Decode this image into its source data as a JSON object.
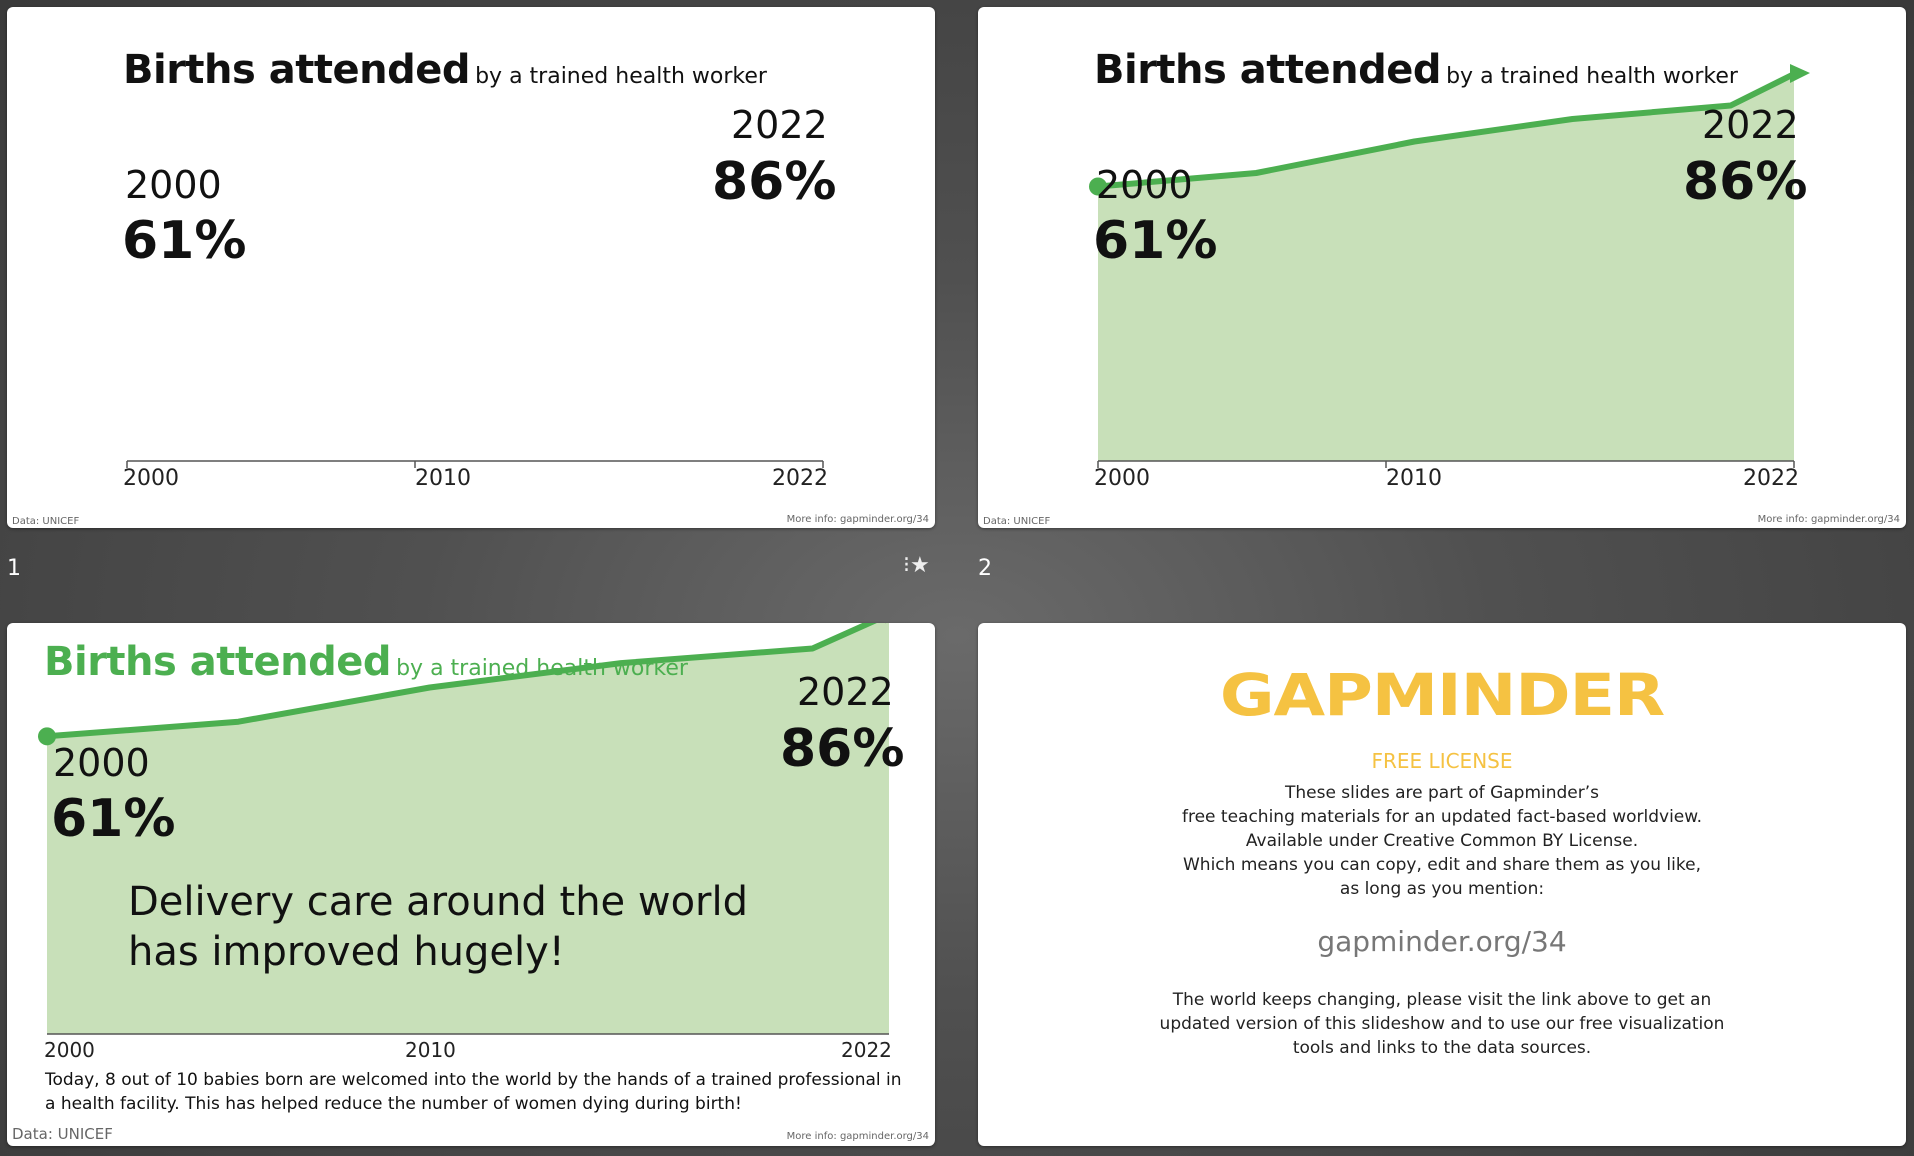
{
  "slides": [
    {
      "number": "1",
      "title_bold": "Births attended",
      "title_sub": "by a trained health worker",
      "start_year": "2000",
      "start_value": "61%",
      "end_year": "2022",
      "end_value": "86%",
      "source": "Data: UNICEF",
      "more_info": "More info: gapminder.org/34",
      "has_star_icon": true
    },
    {
      "number": "2",
      "title_bold": "Births attended",
      "title_sub": "by a trained health worker",
      "start_year": "2000",
      "start_value": "61%",
      "end_year": "2022",
      "end_value": "86%",
      "source": "Data: UNICEF",
      "more_info": "More info: gapminder.org/34"
    },
    {
      "title_bold": "Births attended",
      "title_sub": "by a trained health worker",
      "title_color": "#4caf50",
      "start_year": "2000",
      "start_value": "61%",
      "end_year": "2022",
      "end_value": "86%",
      "headline_line1": "Delivery care around the world",
      "headline_line2": "has improved hugely!",
      "note": "Today, 8 out of 10 babies born are welcomed into the world by the hands of a trained professional in a health facility. This has helped reduce the number of women dying during birth!",
      "source": "Data: UNICEF",
      "more_info": "More info: gapminder.org/34"
    },
    {
      "logo": "GAPMINDER",
      "license_title": "FREE LICENSE",
      "license_lines": [
        "These slides are part of Gapminder’s",
        "free teaching materials for an updated fact-based worldview.",
        "Available under Creative Common BY License.",
        "Which means you can copy, edit and share them as you like,",
        "as long as you mention:"
      ],
      "link": "gapminder.org/34",
      "footer_lines": [
        "The world keeps changing, please visit the link above to get an",
        "updated version of this slideshow and to use our free visualization",
        "tools and links to the data sources."
      ],
      "accent_color": "#f5c242"
    }
  ],
  "chart_data": {
    "type": "area",
    "x": [
      2000,
      2005,
      2010,
      2015,
      2020,
      2022
    ],
    "series": [
      {
        "values": [
          61,
          64,
          71,
          76,
          79,
          86
        ]
      }
    ],
    "xticks": [
      "2000",
      "2010",
      "2022"
    ],
    "color": "#4caf50",
    "fill": "#c8e0b9"
  }
}
